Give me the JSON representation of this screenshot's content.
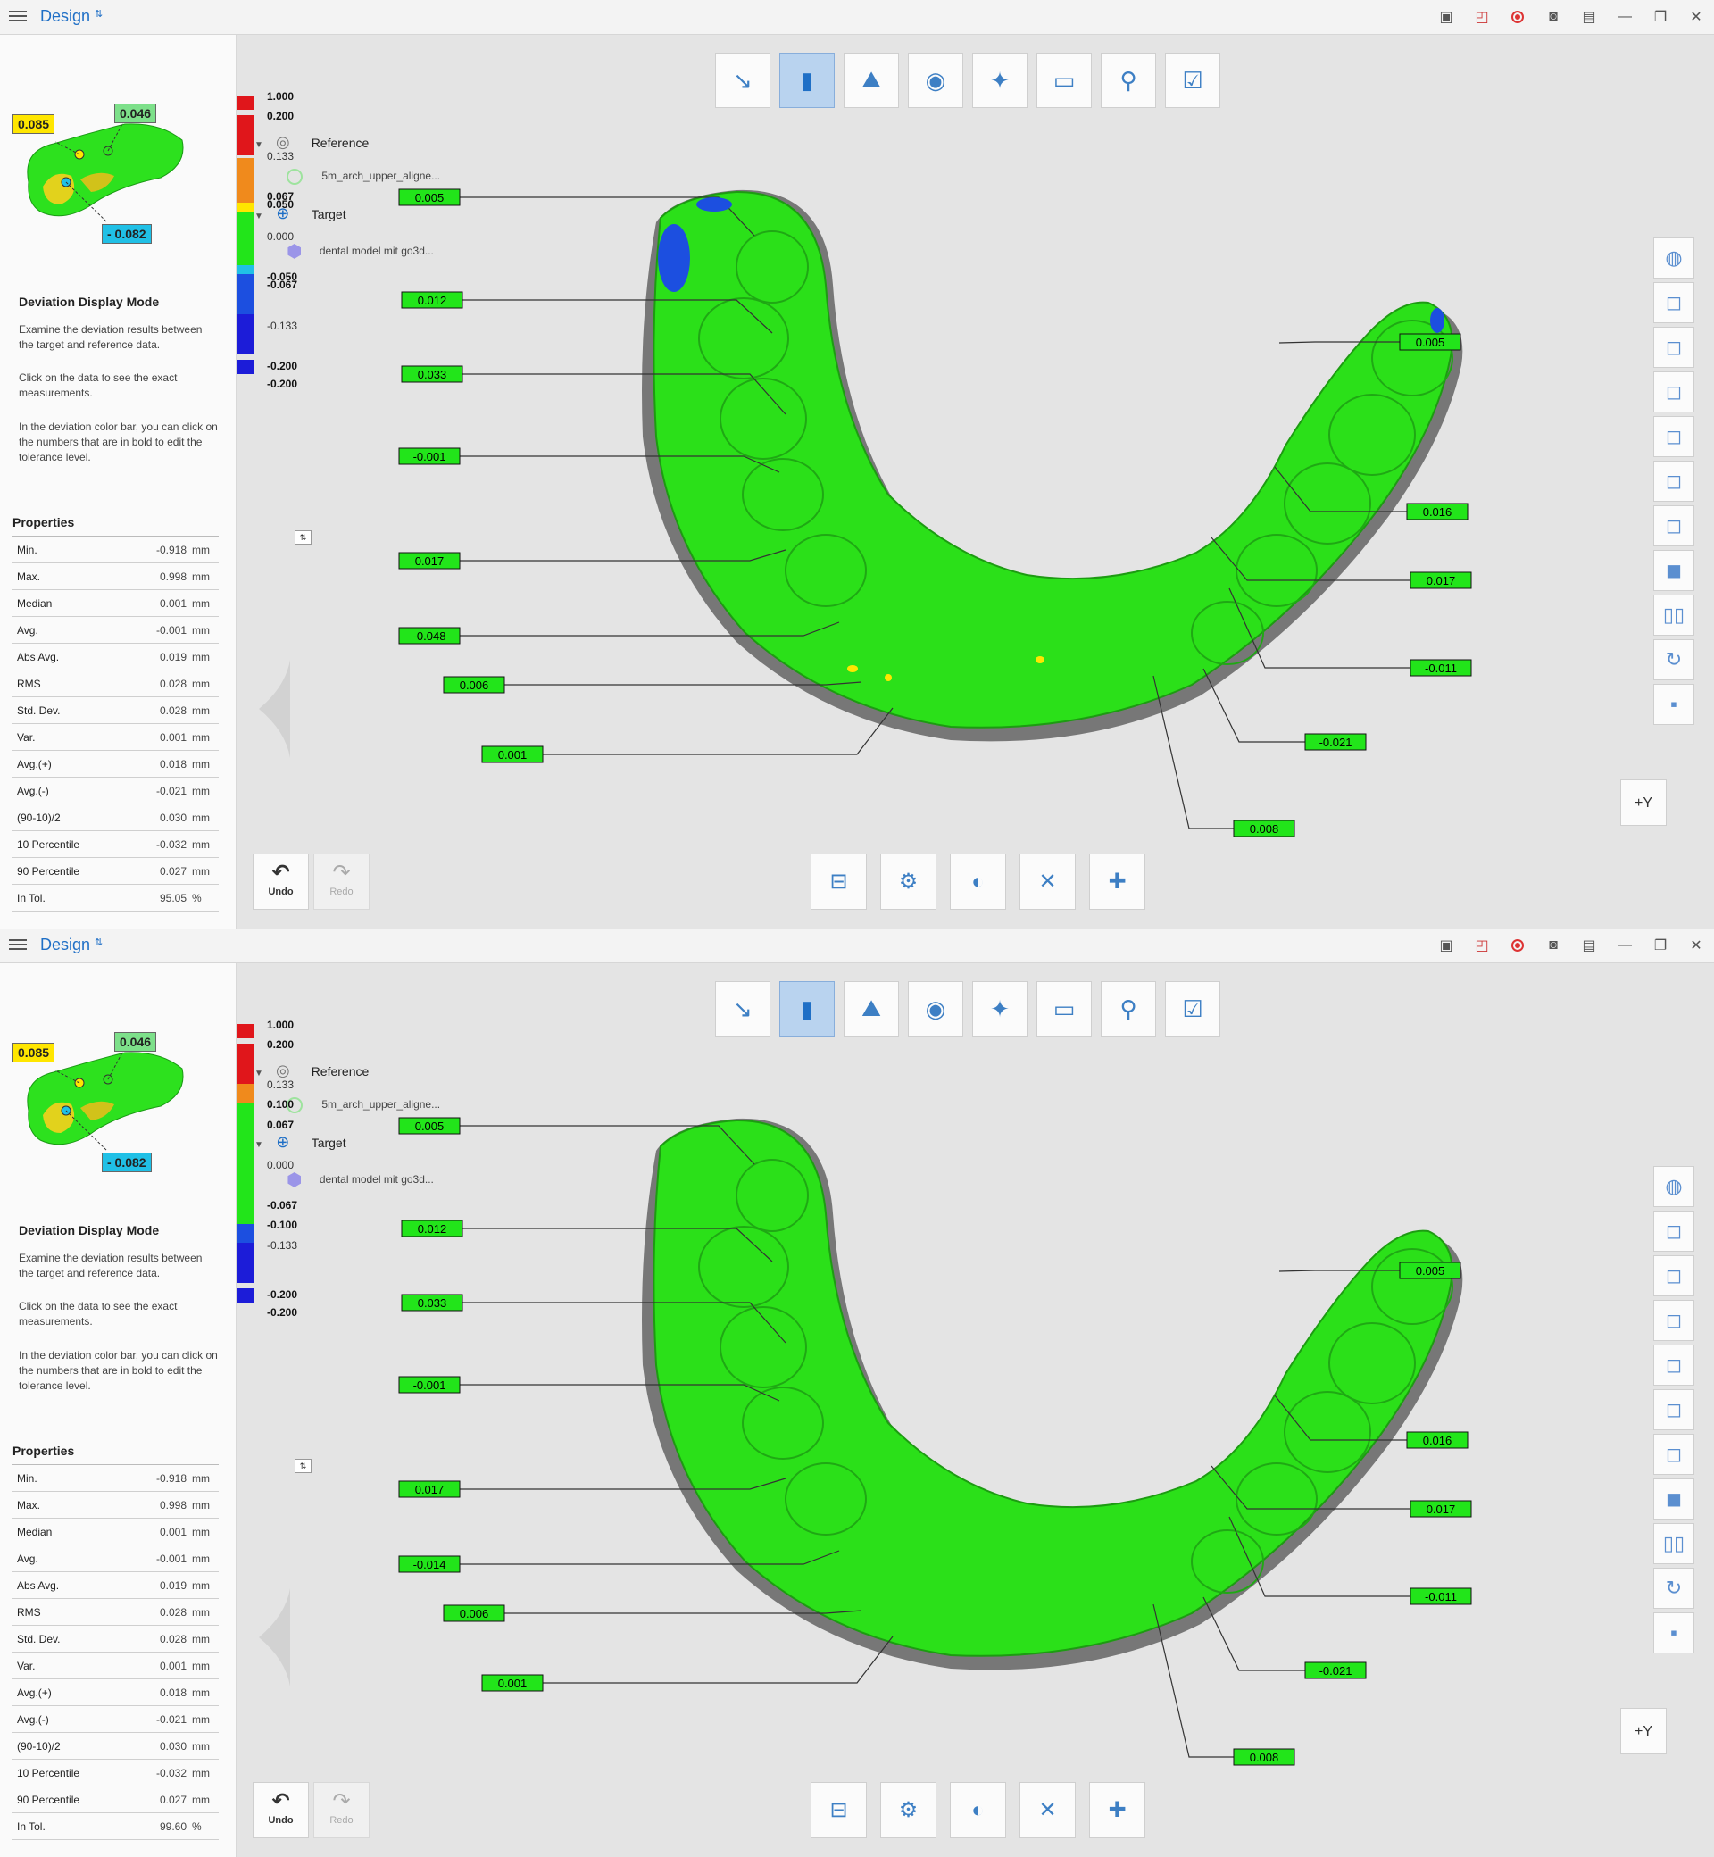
{
  "panels": [
    {
      "app_title": "Design",
      "thumbnail_tags": {
        "yellow": "0.085",
        "green": "0.046",
        "cyan": "- 0.082"
      },
      "mode_title": "Deviation Display Mode",
      "desc1": "Examine the deviation results between the target and reference data.",
      "desc2": "Click on the data to see the exact measurements.",
      "desc3": "In the deviation color bar, you can click on the numbers that are in bold to edit the tolerance level.",
      "props_title": "Properties",
      "props": [
        {
          "name": "Min.",
          "value": "-0.918",
          "unit": "mm"
        },
        {
          "name": "Max.",
          "value": "0.998",
          "unit": "mm"
        },
        {
          "name": "Median",
          "value": "0.001",
          "unit": "mm"
        },
        {
          "name": "Avg.",
          "value": "-0.001",
          "unit": "mm"
        },
        {
          "name": "Abs Avg.",
          "value": "0.019",
          "unit": "mm"
        },
        {
          "name": "RMS",
          "value": "0.028",
          "unit": "mm"
        },
        {
          "name": "Std. Dev.",
          "value": "0.028",
          "unit": "mm"
        },
        {
          "name": "Var.",
          "value": "0.001",
          "unit": "mm"
        },
        {
          "name": "Avg.(+)",
          "value": "0.018",
          "unit": "mm"
        },
        {
          "name": "Avg.(-)",
          "value": "-0.021",
          "unit": "mm"
        },
        {
          "name": "(90-10)/2",
          "value": "0.030",
          "unit": "mm"
        },
        {
          "name": "10 Percentile",
          "value": "-0.032",
          "unit": "mm"
        },
        {
          "name": "90 Percentile",
          "value": "0.027",
          "unit": "mm"
        },
        {
          "name": "In Tol.",
          "value": "95.05",
          "unit": "%"
        }
      ],
      "tree": {
        "reference": "Reference",
        "reference_item": "5m_arch_upper_aligne...",
        "target": "Target",
        "target_item": "dental model mit go3d..."
      },
      "colorbar": [
        "1.000",
        "0.200",
        "0.133",
        "0.067",
        "0.050",
        "0.000",
        "-0.050",
        "-0.067",
        "-0.133",
        "-0.200",
        "-0.200"
      ],
      "undo": "Undo",
      "redo": "Redo",
      "y_button": "+Y",
      "labels": [
        "0.005",
        "0.012",
        "0.033",
        "-0.001",
        "0.017",
        "-0.048",
        "0.006",
        "0.001",
        "0.005",
        "0.016",
        "0.017",
        "-0.011",
        "-0.021",
        "0.008"
      ]
    },
    {
      "app_title": "Design",
      "thumbnail_tags": {
        "yellow": "0.085",
        "green": "0.046",
        "cyan": "- 0.082"
      },
      "mode_title": "Deviation Display Mode",
      "desc1": "Examine the deviation results between the target and reference data.",
      "desc2": "Click on the data to see the exact measurements.",
      "desc3": "In the deviation color bar, you can click on the numbers that are in bold to edit the tolerance level.",
      "props_title": "Properties",
      "props": [
        {
          "name": "Min.",
          "value": "-0.918",
          "unit": "mm"
        },
        {
          "name": "Max.",
          "value": "0.998",
          "unit": "mm"
        },
        {
          "name": "Median",
          "value": "0.001",
          "unit": "mm"
        },
        {
          "name": "Avg.",
          "value": "-0.001",
          "unit": "mm"
        },
        {
          "name": "Abs Avg.",
          "value": "0.019",
          "unit": "mm"
        },
        {
          "name": "RMS",
          "value": "0.028",
          "unit": "mm"
        },
        {
          "name": "Std. Dev.",
          "value": "0.028",
          "unit": "mm"
        },
        {
          "name": "Var.",
          "value": "0.001",
          "unit": "mm"
        },
        {
          "name": "Avg.(+)",
          "value": "0.018",
          "unit": "mm"
        },
        {
          "name": "Avg.(-)",
          "value": "-0.021",
          "unit": "mm"
        },
        {
          "name": "(90-10)/2",
          "value": "0.030",
          "unit": "mm"
        },
        {
          "name": "10 Percentile",
          "value": "-0.032",
          "unit": "mm"
        },
        {
          "name": "90 Percentile",
          "value": "0.027",
          "unit": "mm"
        },
        {
          "name": "In Tol.",
          "value": "99.60",
          "unit": "%"
        }
      ],
      "tree": {
        "reference": "Reference",
        "reference_item": "5m_arch_upper_aligne...",
        "target": "Target",
        "target_item": "dental model mit go3d..."
      },
      "colorbar": [
        "1.000",
        "0.200",
        "0.133",
        "0.100",
        "0.067",
        "0.000",
        "-0.067",
        "-0.100",
        "-0.133",
        "-0.200",
        "-0.200"
      ],
      "undo": "Undo",
      "redo": "Redo",
      "y_button": "+Y",
      "labels": [
        "0.005",
        "0.012",
        "0.033",
        "-0.001",
        "0.017",
        "-0.014",
        "0.006",
        "0.001",
        "0.005",
        "0.016",
        "0.017",
        "-0.011",
        "-0.021",
        "0.008"
      ]
    }
  ],
  "colors": {
    "accent": "#1f6fc6",
    "green": "#22e51a",
    "red": "#e0161b",
    "orange": "#f08a1c",
    "yellow": "#ffe600",
    "blue": "#1c4fe0",
    "cyan": "#20c0e6"
  },
  "icons": {
    "window": [
      "screen-capture-icon",
      "region-capture-icon",
      "record-icon",
      "camera-icon",
      "layout-icon",
      "minimize-icon",
      "restore-icon",
      "close-icon"
    ],
    "toolbar": [
      "align-icon",
      "deviation-icon",
      "section-deviation-icon",
      "occlusion-icon",
      "axis-icon",
      "measure-icon",
      "tools-icon",
      "complete-icon"
    ],
    "bottom": [
      "settings-panel-icon",
      "color-settings-icon",
      "label-toggle-icon",
      "delete-label-icon",
      "add-point-icon"
    ],
    "right": [
      "color-wheel-icon",
      "front-view-icon",
      "back-view-icon",
      "left-view-icon",
      "right-view-icon",
      "top-view-icon",
      "bottom-view-icon",
      "iso-view-icon",
      "split-view-icon",
      "rotate-icon",
      "solid-view-icon"
    ]
  }
}
